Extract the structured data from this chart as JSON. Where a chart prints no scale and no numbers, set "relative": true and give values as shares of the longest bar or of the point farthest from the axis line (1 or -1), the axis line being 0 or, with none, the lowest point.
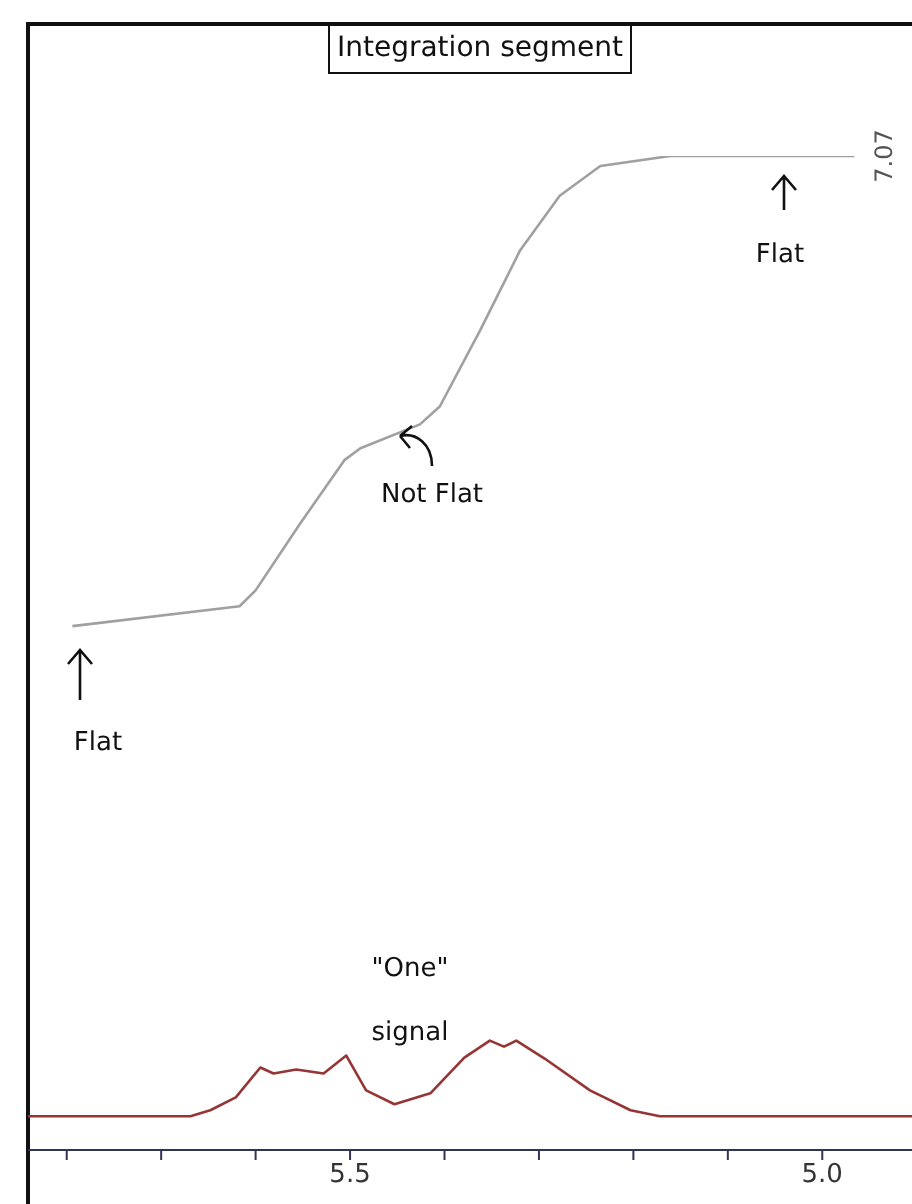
{
  "chart_data": {
    "type": "line",
    "title": "Integration segment",
    "relative": true,
    "xlim": [
      5.841,
      4.905
    ],
    "xticks": [
      {
        "value": 5.8,
        "label": null
      },
      {
        "value": 5.7,
        "label": null
      },
      {
        "value": 5.6,
        "label": null
      },
      5.5,
      {
        "value": 5.4,
        "label": null
      },
      {
        "value": 5.3,
        "label": null
      },
      {
        "value": 5.2,
        "label": null
      },
      {
        "value": 5.1,
        "label": null
      },
      {
        "value": 5.0,
        "label": "5.0"
      }
    ],
    "grid": false,
    "legend": false,
    "marker": "none",
    "line_style": "solid",
    "series": [
      {
        "color": "#a0a0a0",
        "x": [
          5.794,
          5.617,
          5.6,
          5.553,
          5.506,
          5.489,
          5.426,
          5.405,
          5.362,
          5.32,
          5.278,
          5.235,
          5.161,
          4.966
        ],
        "values": [
          0.527,
          0.547,
          0.563,
          0.63,
          0.694,
          0.706,
          0.73,
          0.748,
          0.825,
          0.905,
          0.96,
          0.99,
          1,
          1
        ]
      },
      {
        "color": "#953535",
        "x": [
          5.841,
          5.765,
          5.669,
          5.648,
          5.621,
          5.595,
          5.581,
          5.557,
          5.528,
          5.504,
          5.483,
          5.453,
          5.415,
          5.379,
          5.352,
          5.337,
          5.324,
          5.294,
          5.246,
          5.203,
          5.172,
          4.905
        ],
        "values": [
          0.034,
          0.034,
          0.034,
          0.04,
          0.053,
          0.083,
          0.077,
          0.081,
          0.077,
          0.095,
          0.06,
          0.046,
          0.057,
          0.093,
          0.11,
          0.104,
          0.11,
          0.092,
          0.06,
          0.04,
          0.034,
          0.034
        ]
      }
    ],
    "annotations": [
      "7.07",
      "Flat",
      "Not Flat",
      "Flat",
      "\"One\" signal"
    ]
  }
}
